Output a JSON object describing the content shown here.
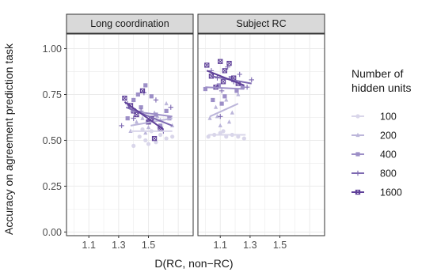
{
  "chart_data": {
    "type": "scatter",
    "ylabel": "Accuracy on agreement prediction task",
    "xlabel": "D(RC, non−RC)",
    "ylim": [
      -0.02,
      1.08
    ],
    "yticks": [
      {
        "value": 0.0,
        "label": "0.00"
      },
      {
        "value": 0.25,
        "label": "0.25"
      },
      {
        "value": 0.5,
        "label": "0.50"
      },
      {
        "value": 0.75,
        "label": "0.75"
      },
      {
        "value": 1.0,
        "label": "1.00"
      }
    ],
    "grid": true,
    "legend": {
      "title_lines": [
        "Number of",
        "hidden units"
      ],
      "position": "right"
    },
    "series": [
      {
        "name": "100",
        "color": "#d9d6ea",
        "marker": "circle"
      },
      {
        "name": "200",
        "color": "#bcb6da",
        "marker": "triangle"
      },
      {
        "name": "400",
        "color": "#9d8fc7",
        "marker": "square"
      },
      {
        "name": "800",
        "color": "#7d69b1",
        "marker": "plus"
      },
      {
        "name": "1600",
        "color": "#5e3f98",
        "marker": "boxx"
      }
    ],
    "panels": [
      {
        "title": "Long coordination",
        "xlim": [
          0.95,
          1.8
        ],
        "xticks": [
          {
            "value": 1.1,
            "label": "1.1"
          },
          {
            "value": 1.3,
            "label": "1.3"
          },
          {
            "value": 1.5,
            "label": "1.5"
          }
        ],
        "points": {
          "100": [
            [
              1.4,
              0.47
            ],
            [
              1.44,
              0.52
            ],
            [
              1.48,
              0.5
            ],
            [
              1.52,
              0.55
            ],
            [
              1.55,
              0.49
            ],
            [
              1.58,
              0.53
            ],
            [
              1.62,
              0.51
            ],
            [
              1.46,
              0.56
            ],
            [
              1.5,
              0.48
            ],
            [
              1.57,
              0.57
            ],
            [
              1.66,
              0.52
            ]
          ],
          "200": [
            [
              1.38,
              0.55
            ],
            [
              1.42,
              0.6
            ],
            [
              1.46,
              0.62
            ],
            [
              1.5,
              0.57
            ],
            [
              1.54,
              0.65
            ],
            [
              1.58,
              0.61
            ],
            [
              1.62,
              0.7
            ],
            [
              1.66,
              0.58
            ],
            [
              1.48,
              0.54
            ],
            [
              1.56,
              0.63
            ]
          ],
          "400": [
            [
              1.36,
              0.62
            ],
            [
              1.4,
              0.72
            ],
            [
              1.45,
              0.68
            ],
            [
              1.48,
              0.8
            ],
            [
              1.52,
              0.74
            ],
            [
              1.55,
              0.64
            ],
            [
              1.58,
              0.58
            ],
            [
              1.62,
              0.66
            ],
            [
              1.5,
              0.6
            ],
            [
              1.43,
              0.75
            ],
            [
              1.64,
              0.62
            ]
          ],
          "800": [
            [
              1.32,
              0.58
            ],
            [
              1.36,
              0.7
            ],
            [
              1.4,
              0.62
            ],
            [
              1.45,
              0.66
            ],
            [
              1.5,
              0.6
            ],
            [
              1.55,
              0.72
            ],
            [
              1.6,
              0.55
            ],
            [
              1.65,
              0.68
            ],
            [
              1.47,
              0.76
            ]
          ],
          "1600": [
            [
              1.34,
              0.73
            ],
            [
              1.38,
              0.69
            ],
            [
              1.42,
              0.64
            ],
            [
              1.46,
              0.77
            ],
            [
              1.5,
              0.6
            ],
            [
              1.54,
              0.51
            ],
            [
              1.58,
              0.56
            ],
            [
              1.4,
              0.66
            ],
            [
              1.52,
              0.62
            ]
          ]
        },
        "fits": {
          "100": [
            [
              1.38,
              0.55
            ],
            [
              1.66,
              0.55
            ]
          ],
          "200": [
            [
              1.38,
              0.58
            ],
            [
              1.66,
              0.62
            ]
          ],
          "400": [
            [
              1.38,
              0.66
            ],
            [
              1.66,
              0.63
            ]
          ],
          "800": [
            [
              1.35,
              0.68
            ],
            [
              1.66,
              0.58
            ]
          ],
          "1600": [
            [
              1.34,
              0.71
            ],
            [
              1.6,
              0.56
            ]
          ]
        }
      },
      {
        "title": "Subject RC",
        "xlim": [
          0.95,
          1.8
        ],
        "xticks": [
          {
            "value": 1.1,
            "label": "1.1"
          },
          {
            "value": 1.3,
            "label": "1.3"
          },
          {
            "value": 1.5,
            "label": "1.5"
          }
        ],
        "points": {
          "100": [
            [
              1.02,
              0.52
            ],
            [
              1.06,
              0.53
            ],
            [
              1.1,
              0.54
            ],
            [
              1.14,
              0.52
            ],
            [
              1.18,
              0.53
            ],
            [
              1.22,
              0.52
            ],
            [
              1.26,
              0.51
            ],
            [
              1.12,
              0.55
            ]
          ],
          "200": [
            [
              1.03,
              0.62
            ],
            [
              1.07,
              0.68
            ],
            [
              1.1,
              0.58
            ],
            [
              1.14,
              0.72
            ],
            [
              1.18,
              0.65
            ],
            [
              1.22,
              0.75
            ],
            [
              1.08,
              0.63
            ],
            [
              1.16,
              0.6
            ]
          ],
          "400": [
            [
              1.0,
              0.78
            ],
            [
              1.05,
              0.72
            ],
            [
              1.09,
              0.8
            ],
            [
              1.13,
              0.74
            ],
            [
              1.17,
              0.84
            ],
            [
              1.21,
              0.77
            ],
            [
              1.25,
              0.79
            ],
            [
              1.11,
              0.7
            ]
          ],
          "800": [
            [
              1.04,
              0.88
            ],
            [
              1.08,
              0.84
            ],
            [
              1.11,
              0.77
            ],
            [
              1.15,
              0.9
            ],
            [
              1.19,
              0.82
            ],
            [
              1.23,
              0.86
            ],
            [
              1.28,
              0.79
            ],
            [
              1.31,
              0.83
            ],
            [
              1.1,
              0.63
            ]
          ],
          "1600": [
            [
              1.01,
              0.91
            ],
            [
              1.04,
              0.85
            ],
            [
              1.07,
              0.79
            ],
            [
              1.1,
              0.93
            ],
            [
              1.13,
              0.88
            ],
            [
              1.16,
              0.92
            ],
            [
              1.19,
              0.84
            ],
            [
              1.22,
              0.81
            ],
            [
              1.12,
              0.82
            ]
          ]
        },
        "fits": {
          "100": [
            [
              1.02,
              0.53
            ],
            [
              1.27,
              0.53
            ]
          ],
          "200": [
            [
              1.03,
              0.63
            ],
            [
              1.22,
              0.7
            ]
          ],
          "400": [
            [
              1.0,
              0.79
            ],
            [
              1.26,
              0.78
            ]
          ],
          "800": [
            [
              1.04,
              0.85
            ],
            [
              1.31,
              0.81
            ]
          ],
          "1600": [
            [
              1.01,
              0.88
            ],
            [
              1.26,
              0.8
            ]
          ]
        }
      }
    ]
  }
}
